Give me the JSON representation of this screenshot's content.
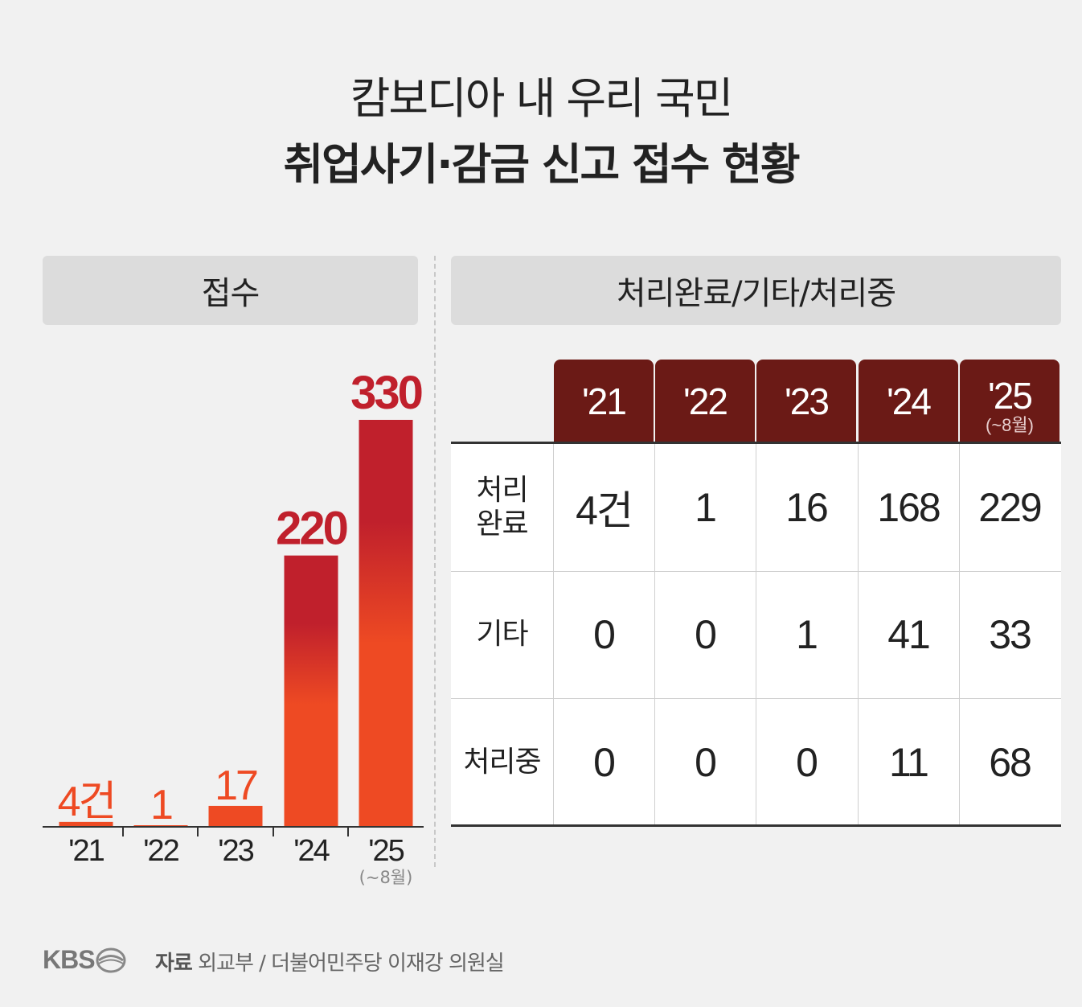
{
  "title": {
    "line1": "캄보디아 내 우리 국민",
    "line2": "취업사기·감금 신고 접수 현황"
  },
  "left_section": {
    "header": "접수"
  },
  "right_section": {
    "header": "처리완료/기타/처리중"
  },
  "colors": {
    "bar_top": "#c0202c",
    "bar_bottom": "#ee4a23",
    "label_small": "#ee4a23",
    "label_large": "#c0202c",
    "table_header": "#6b1a16"
  },
  "chart_data": [
    {
      "type": "bar",
      "title": "접수",
      "categories": [
        "'21",
        "'22",
        "'23",
        "'24",
        "'25"
      ],
      "category_notes": [
        "",
        "",
        "",
        "",
        "(~8월)"
      ],
      "values": [
        4,
        1,
        17,
        220,
        330
      ],
      "data_labels": [
        "4건",
        "1",
        "17",
        "220",
        "330"
      ],
      "ylim": [
        0,
        330
      ],
      "grid": false
    },
    {
      "type": "table",
      "columns": [
        "'21",
        "'22",
        "'23",
        "'24",
        "'25"
      ],
      "column_notes": [
        "",
        "",
        "",
        "",
        "(~8월)"
      ],
      "rows": [
        {
          "label": [
            "처리",
            "완료"
          ],
          "values": [
            "4건",
            "1",
            "16",
            "168",
            "229"
          ]
        },
        {
          "label": [
            "기타"
          ],
          "values": [
            "0",
            "0",
            "1",
            "41",
            "33"
          ]
        },
        {
          "label": [
            "처리중"
          ],
          "values": [
            "0",
            "0",
            "0",
            "11",
            "68"
          ]
        }
      ]
    }
  ],
  "footer": {
    "logo": "KBS",
    "source_label": "자료",
    "source_text": "외교부 / 더불어민주당 이재강 의원실"
  }
}
